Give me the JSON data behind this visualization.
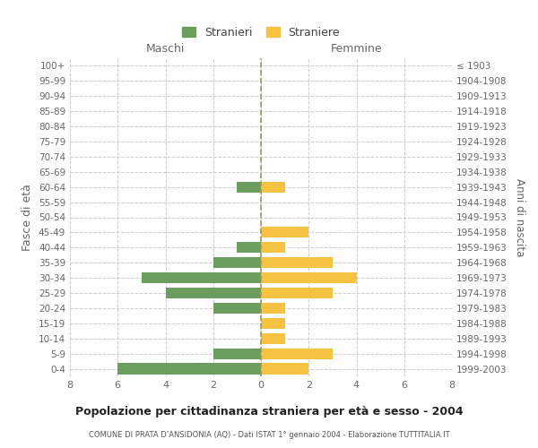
{
  "age_groups": [
    "0-4",
    "5-9",
    "10-14",
    "15-19",
    "20-24",
    "25-29",
    "30-34",
    "35-39",
    "40-44",
    "45-49",
    "50-54",
    "55-59",
    "60-64",
    "65-69",
    "70-74",
    "75-79",
    "80-84",
    "85-89",
    "90-94",
    "95-99",
    "100+"
  ],
  "birth_years": [
    "1999-2003",
    "1994-1998",
    "1989-1993",
    "1984-1988",
    "1979-1983",
    "1974-1978",
    "1969-1973",
    "1964-1968",
    "1959-1963",
    "1954-1958",
    "1949-1953",
    "1944-1948",
    "1939-1943",
    "1934-1938",
    "1929-1933",
    "1924-1928",
    "1919-1923",
    "1914-1918",
    "1909-1913",
    "1904-1908",
    "≤ 1903"
  ],
  "maschi": [
    6,
    2,
    0,
    0,
    2,
    4,
    5,
    2,
    1,
    0,
    0,
    0,
    1,
    0,
    0,
    0,
    0,
    0,
    0,
    0,
    0
  ],
  "femmine": [
    2,
    3,
    1,
    1,
    1,
    3,
    4,
    3,
    1,
    2,
    0,
    0,
    1,
    0,
    0,
    0,
    0,
    0,
    0,
    0,
    0
  ],
  "male_color": "#6b9e5e",
  "female_color": "#f5c242",
  "title": "Popolazione per cittadinanza straniera per età e sesso - 2004",
  "subtitle": "COMUNE DI PRATA D’ANSIDONIA (AQ) - Dati ISTAT 1° gennaio 2004 - Elaborazione TUTTITALIA.IT",
  "ylabel_left": "Fasce di età",
  "ylabel_right": "Anni di nascita",
  "xlabel_maschi": "Maschi",
  "xlabel_femmine": "Femmine",
  "legend_maschi": "Stranieri",
  "legend_femmine": "Straniere",
  "xlim": 8,
  "background_color": "#ffffff",
  "grid_color": "#cccccc"
}
